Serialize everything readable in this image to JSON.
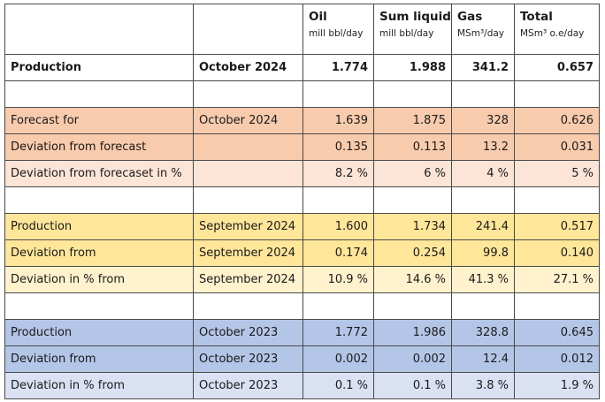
{
  "header": {
    "columns": [
      {
        "title": "",
        "unit": ""
      },
      {
        "title": "",
        "unit": ""
      },
      {
        "title": "Oil",
        "unit": "mill bbl/day"
      },
      {
        "title": "Sum liquid",
        "unit": "mill bbl/day"
      },
      {
        "title": "Gas",
        "unit": "MSm³/day"
      },
      {
        "title": "Total",
        "unit": "MSm³ o.e/day"
      }
    ]
  },
  "rows": [
    {
      "style": "bold",
      "label": "Production",
      "period": "October 2024",
      "oil": "1.774",
      "sum_liquid": "1.988",
      "gas": "341.2",
      "total": "0.657"
    },
    {
      "style": "blank",
      "label": "",
      "period": "",
      "oil": "",
      "sum_liquid": "",
      "gas": "",
      "total": ""
    },
    {
      "style": "o1",
      "label": "Forecast for",
      "period": "October 2024",
      "oil": "1.639",
      "sum_liquid": "1.875",
      "gas": "328",
      "total": "0.626"
    },
    {
      "style": "o1",
      "label": "Deviation from forecast",
      "period": "",
      "oil": "0.135",
      "sum_liquid": "0.113",
      "gas": "13.2",
      "total": "0.031"
    },
    {
      "style": "o2",
      "label": "Deviation from forecaset in %",
      "period": "",
      "oil": "8.2 %",
      "sum_liquid": "6 %",
      "gas": "4 %",
      "total": "5 %"
    },
    {
      "style": "blank",
      "label": "",
      "period": "",
      "oil": "",
      "sum_liquid": "",
      "gas": "",
      "total": ""
    },
    {
      "style": "y1",
      "label": "Production",
      "period": "September 2024",
      "oil": "1.600",
      "sum_liquid": "1.734",
      "gas": "241.4",
      "total": "0.517"
    },
    {
      "style": "y1",
      "label": "Deviation from",
      "period": "September 2024",
      "oil": "0.174",
      "sum_liquid": "0.254",
      "gas": "99.8",
      "total": "0.140"
    },
    {
      "style": "y2",
      "label": "Deviation in % from",
      "period": "September 2024",
      "oil": "10.9 %",
      "sum_liquid": "14.6 %",
      "gas": "41.3 %",
      "total": "27.1 %"
    },
    {
      "style": "blank",
      "label": "",
      "period": "",
      "oil": "",
      "sum_liquid": "",
      "gas": "",
      "total": ""
    },
    {
      "style": "b1",
      "label": "Production",
      "period": "October 2023",
      "oil": "1.772",
      "sum_liquid": "1.986",
      "gas": "328.8",
      "total": "0.645"
    },
    {
      "style": "b1",
      "label": "Deviation from",
      "period": "October 2023",
      "oil": "0.002",
      "sum_liquid": "0.002",
      "gas": "12.4",
      "total": "0.012"
    },
    {
      "style": "b2",
      "label": "Deviation in % from",
      "period": "October 2023",
      "oil": "0.1 %",
      "sum_liquid": "0.1 %",
      "gas": "3.8 %",
      "total": "1.9 %"
    }
  ],
  "colors": {
    "forecast_dark": "#f8cbad",
    "forecast_light": "#fce4d6",
    "prev_month_dark": "#ffe699",
    "prev_month_light": "#fff2cc",
    "prev_year_dark": "#b4c6e7",
    "prev_year_light": "#d9e1f2"
  }
}
